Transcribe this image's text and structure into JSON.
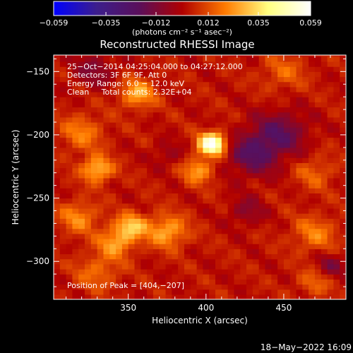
{
  "chart_data": {
    "type": "heatmap",
    "title": "Reconstructed RHESSI Image",
    "colorbar": {
      "tick_labels": [
        "−0.059",
        "−0.035",
        "−0.012",
        "0.012",
        "0.035",
        "0.059"
      ],
      "tick_values": [
        -0.059,
        -0.035,
        -0.012,
        0.012,
        0.035,
        0.059
      ],
      "range": [
        -0.059,
        0.059
      ],
      "units_label": "(photons cm⁻² s⁻¹ asec⁻²)",
      "colors": [
        "#0000ff",
        "#3c1e8c",
        "#5a0f5a",
        "#b00000",
        "#ff7a00",
        "#ffff80",
        "#ffffff"
      ]
    },
    "xlabel": "Heliocentric X (arcsec)",
    "ylabel": "Heliocentric Y (arcsec)",
    "xlim": [
      302,
      490
    ],
    "ylim": [
      -330,
      -137
    ],
    "x_ticks": [
      350,
      400,
      450
    ],
    "y_ticks": [
      -150,
      -200,
      -250,
      -300
    ],
    "x_tick_labels": [
      "350",
      "400",
      "450"
    ],
    "y_tick_labels": [
      "−150",
      "−200",
      "−250",
      "−300"
    ],
    "annotations": [
      "25−Oct−2014 04:25:04.000 to 04:27:12.000",
      "Detectors: 3F 6F 9F, Att 0",
      "Energy Range: 6.0 − 12.0 keV",
      "Clean     Total counts: 2.32E+04"
    ],
    "peak_label": "Position of Peak = [404,−207]",
    "peak": [
      404,
      -207
    ],
    "peak_value": 0.059,
    "sources": [
      {
        "x": 404,
        "y": -207,
        "sigma": 6,
        "amp": 0.059
      },
      {
        "x": 395,
        "y": -228,
        "sigma": 7,
        "amp": 0.022
      },
      {
        "x": 330,
        "y": -227,
        "sigma": 7,
        "amp": 0.028
      },
      {
        "x": 352,
        "y": -272,
        "sigma": 7,
        "amp": 0.027
      },
      {
        "x": 375,
        "y": -276,
        "sigma": 9,
        "amp": 0.024
      },
      {
        "x": 342,
        "y": -285,
        "sigma": 8,
        "amp": 0.022
      },
      {
        "x": 356,
        "y": -167,
        "sigma": 8,
        "amp": 0.024
      },
      {
        "x": 320,
        "y": -198,
        "sigma": 10,
        "amp": 0.016
      },
      {
        "x": 318,
        "y": -265,
        "sigma": 9,
        "amp": 0.018
      },
      {
        "x": 330,
        "y": -308,
        "sigma": 10,
        "amp": 0.014
      },
      {
        "x": 470,
        "y": -278,
        "sigma": 10,
        "amp": 0.016
      },
      {
        "x": 470,
        "y": -230,
        "sigma": 9,
        "amp": 0.012
      },
      {
        "x": 450,
        "y": -150,
        "sigma": 10,
        "amp": 0.012
      },
      {
        "x": 470,
        "y": -316,
        "sigma": 8,
        "amp": 0.012
      },
      {
        "x": 430,
        "y": -215,
        "sigma": 12,
        "amp": -0.022
      },
      {
        "x": 448,
        "y": -198,
        "sigma": 12,
        "amp": -0.02
      },
      {
        "x": 426,
        "y": -260,
        "sigma": 8,
        "amp": -0.012
      },
      {
        "x": 480,
        "y": -303,
        "sigma": 7,
        "amp": -0.014
      },
      {
        "x": 328,
        "y": -148,
        "sigma": 10,
        "amp": -0.012
      },
      {
        "x": 375,
        "y": -215,
        "sigma": 7,
        "amp": -0.009
      }
    ]
  },
  "footer_timestamp": "18−May−2022 16:09"
}
